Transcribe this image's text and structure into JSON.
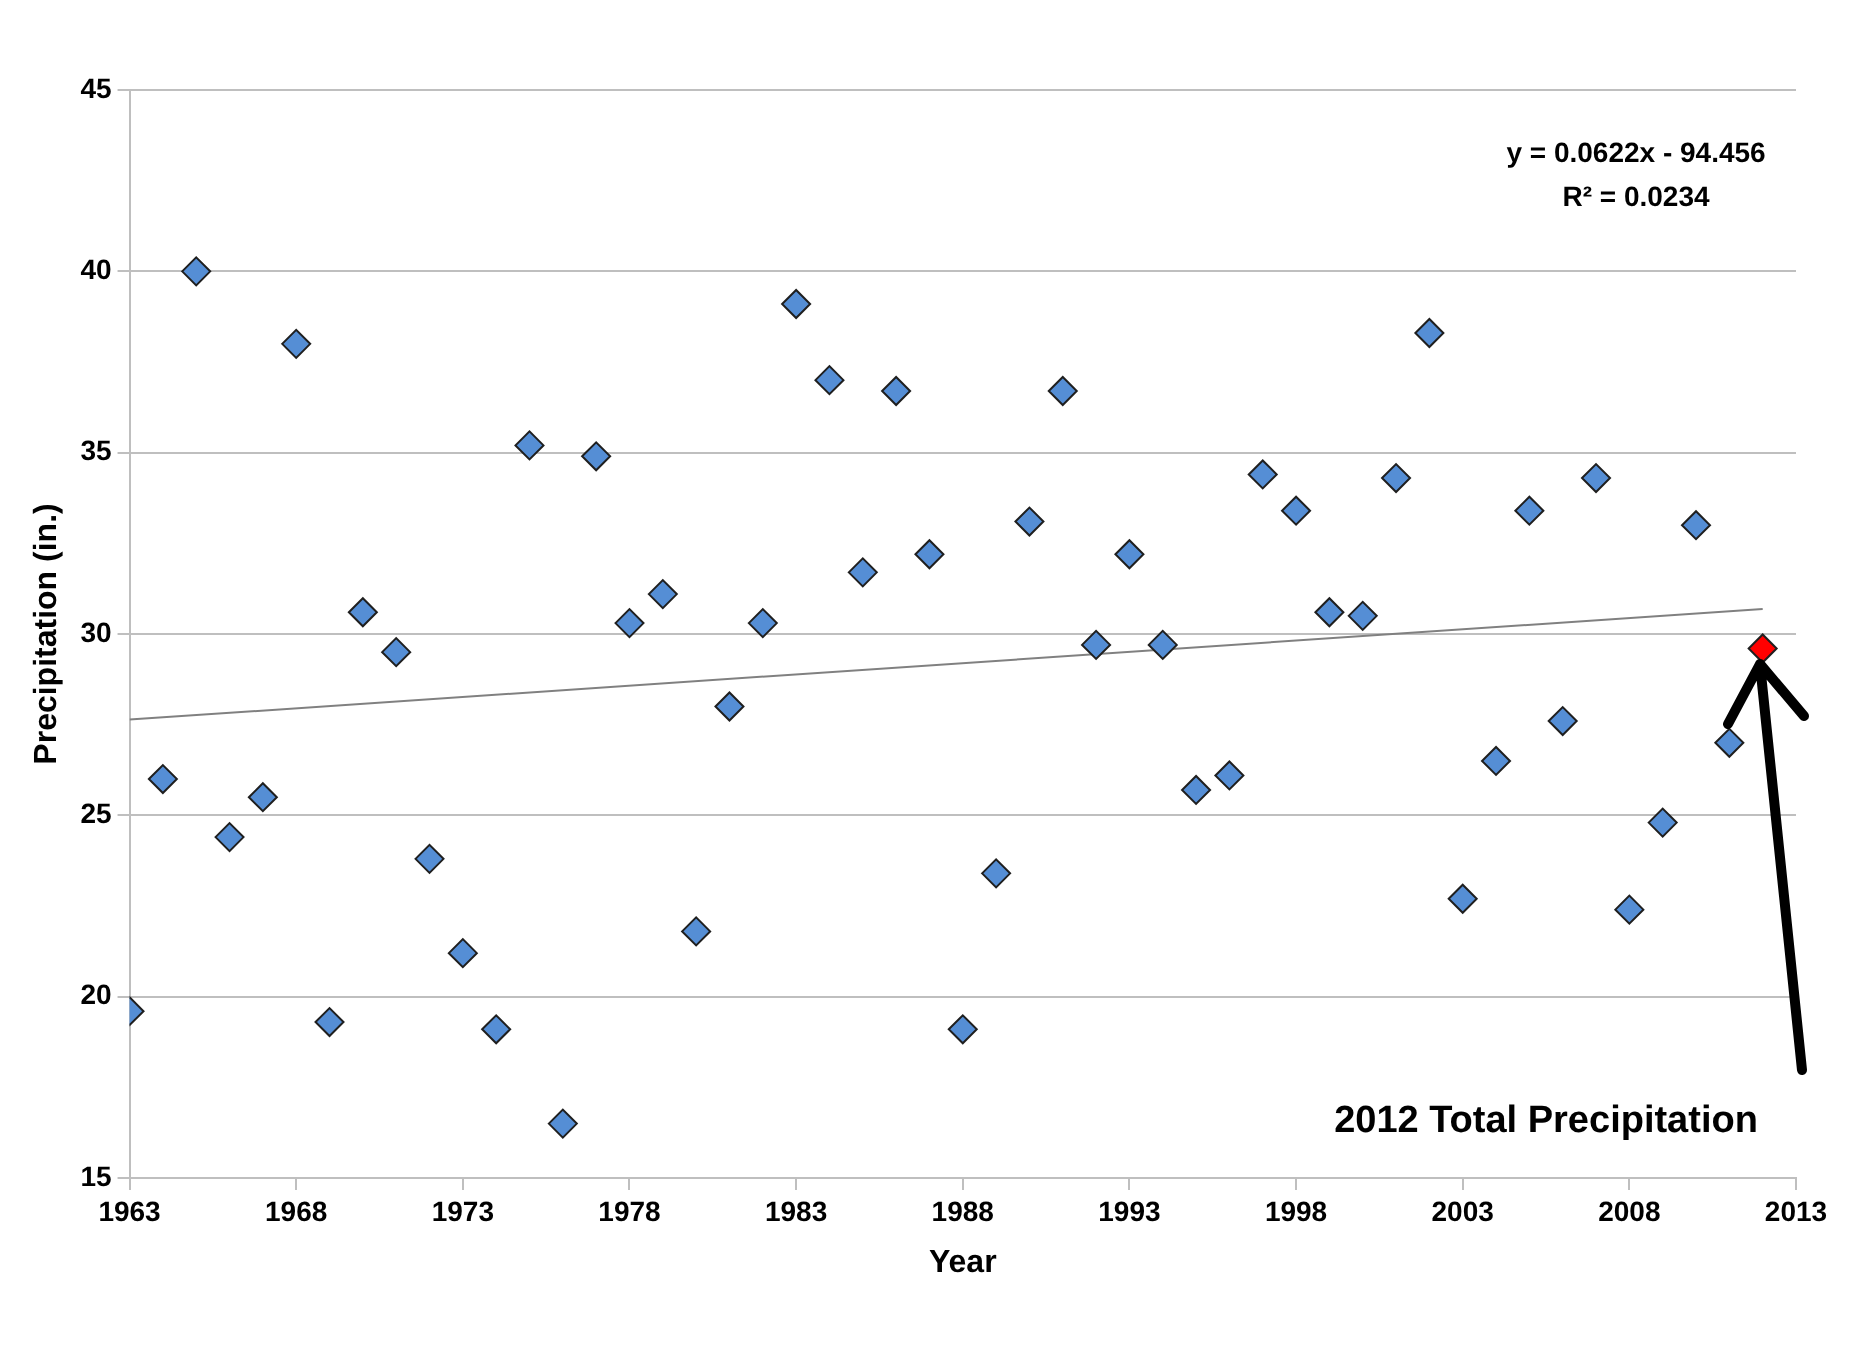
{
  "chart_data": {
    "type": "scatter",
    "xlabel": "Year",
    "ylabel": "Precipitation (in.)",
    "xlim": [
      1963,
      2013
    ],
    "xticks": [
      1963,
      1968,
      1973,
      1978,
      1983,
      1988,
      1993,
      1998,
      2003,
      2008,
      2013
    ],
    "ylim": [
      15,
      45
    ],
    "yticks": [
      15,
      20,
      25,
      30,
      35,
      40,
      45
    ],
    "grid": "y",
    "legend": false,
    "marker": "diamond",
    "series": [
      {
        "color": "#558ed5",
        "x": [
          1963,
          1964,
          1965,
          1966,
          1967,
          1968,
          1969,
          1970,
          1971,
          1972,
          1973,
          1974,
          1975,
          1976,
          1977,
          1978,
          1979,
          1980,
          1981,
          1982,
          1983,
          1984,
          1985,
          1986,
          1987,
          1988,
          1989,
          1990,
          1991,
          1992,
          1993,
          1994,
          1995,
          1996,
          1997,
          1998,
          1999,
          2000,
          2001,
          2002,
          2003,
          2004,
          2005,
          2006,
          2007,
          2008,
          2009,
          2010,
          2011
        ],
        "values": [
          19.6,
          26.0,
          40.0,
          24.4,
          25.5,
          38.0,
          19.3,
          30.6,
          29.5,
          23.8,
          21.2,
          19.1,
          35.2,
          16.5,
          34.9,
          30.3,
          31.1,
          21.8,
          28.0,
          30.3,
          39.1,
          37.0,
          31.7,
          36.7,
          32.2,
          19.1,
          23.4,
          33.1,
          36.7,
          29.7,
          32.2,
          29.7,
          25.7,
          26.1,
          34.4,
          33.4,
          30.6,
          30.5,
          34.3,
          38.3,
          22.7,
          26.5,
          33.4,
          27.6,
          34.3,
          22.4,
          24.8,
          33.0,
          27.0
        ]
      },
      {
        "type": "scatter",
        "color": "#ff0000",
        "x": [
          2012
        ],
        "values": [
          29.6
        ]
      },
      {
        "type": "line",
        "color": "#808080",
        "marker": "none",
        "x": [
          1963,
          2012
        ],
        "values": [
          27.64,
          30.69
        ]
      }
    ],
    "annotations": [
      "y = 0.0622x - 94.456",
      "R² = 0.0234",
      "2012 Total Precipitation"
    ]
  }
}
